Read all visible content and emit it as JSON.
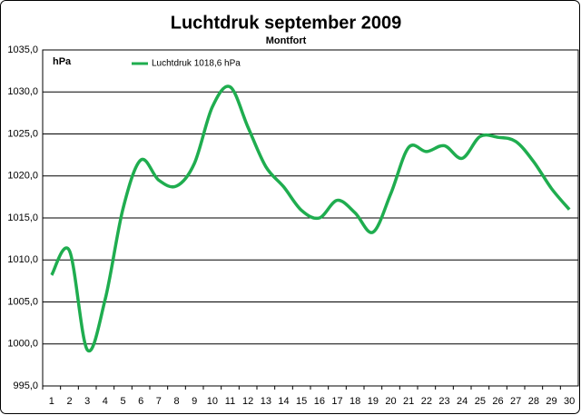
{
  "chart_data": {
    "type": "line",
    "title": "Luchtdruk september 2009",
    "subtitle": "Montfort",
    "y_label": "hPa",
    "categories": [
      "1",
      "2",
      "3",
      "4",
      "5",
      "6",
      "7",
      "8",
      "9",
      "10",
      "11",
      "12",
      "13",
      "14",
      "15",
      "16",
      "17",
      "18",
      "19",
      "20",
      "21",
      "22",
      "23",
      "24",
      "25",
      "26",
      "27",
      "28",
      "29",
      "30"
    ],
    "series": [
      {
        "name": "Luchtdruk 1018,6  hPa",
        "color": "#1fad4f",
        "values": [
          1008.2,
          1011.1,
          999.3,
          1005.3,
          1016.1,
          1021.9,
          1019.5,
          1018.8,
          1021.5,
          1028.2,
          1030.6,
          1025.8,
          1021.1,
          1018.7,
          1015.9,
          1015.0,
          1017.1,
          1015.6,
          1013.3,
          1017.9,
          1023.4,
          1022.9,
          1023.6,
          1022.1,
          1024.7,
          1024.6,
          1024.1,
          1021.7,
          1018.5,
          1016.0
        ]
      }
    ],
    "ylim": [
      995,
      1035
    ],
    "yticks": [
      {
        "value": 995,
        "label": "995,0"
      },
      {
        "value": 1000,
        "label": "1000,0"
      },
      {
        "value": 1005,
        "label": "1005,0"
      },
      {
        "value": 1010,
        "label": "1010,0"
      },
      {
        "value": 1015,
        "label": "1015,0"
      },
      {
        "value": 1020,
        "label": "1020,0"
      },
      {
        "value": 1025,
        "label": "1025,0"
      },
      {
        "value": 1030,
        "label": "1030,0"
      },
      {
        "value": 1035,
        "label": "1035,0"
      }
    ],
    "grid": true
  }
}
